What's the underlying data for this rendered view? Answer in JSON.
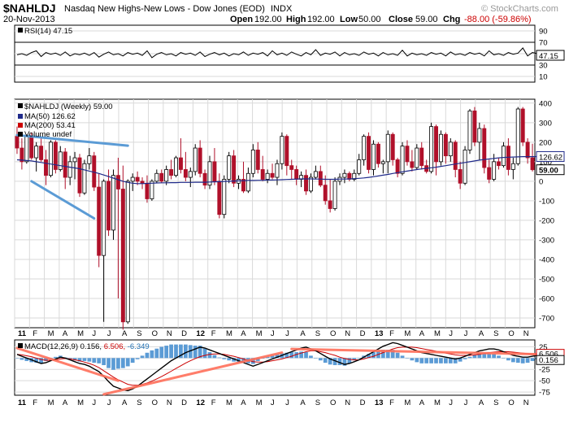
{
  "header": {
    "symbol": "$NAHLDJ",
    "description": "Nasdaq New Highs-New Lows - Dow Jones (EOD)",
    "exchange": "INDX",
    "watermark": "© StockCharts.com",
    "date": "20-Nov-2013",
    "open_label": "Open",
    "open": "192.00",
    "high_label": "High",
    "high": "192.00",
    "low_label": "Low",
    "low": "50.00",
    "close_label": "Close",
    "close": "59.00",
    "chg_label": "Chg",
    "chg": "-88.00 (-59.86%)"
  },
  "chart_data": [
    {
      "type": "line",
      "panel": "rsi",
      "legend": "RSI(14) 47.15",
      "current_value": "47.15",
      "ylim": [
        0,
        100
      ],
      "ticks": [
        "90",
        "70",
        "50",
        "30",
        "10"
      ],
      "reference_lines": [
        70,
        30
      ],
      "values": [
        48,
        50,
        47,
        52,
        55,
        45,
        52,
        49,
        51,
        47,
        53,
        46,
        50,
        48,
        51,
        47,
        52,
        44,
        49,
        53,
        48,
        50,
        46,
        52,
        49,
        51,
        47,
        55,
        43,
        49,
        52,
        48,
        50,
        46,
        52,
        49,
        51,
        47,
        53,
        45,
        49,
        52,
        48,
        51,
        46,
        50,
        48,
        53,
        47,
        51,
        49,
        52,
        46,
        55,
        48,
        51,
        47,
        53,
        49,
        46,
        52,
        48,
        57,
        47,
        51,
        49,
        53,
        46,
        52,
        48,
        50,
        47,
        53,
        49,
        51,
        46,
        52,
        48,
        50,
        47,
        56,
        46,
        51,
        48,
        50,
        47,
        52,
        49,
        51,
        46,
        53,
        48,
        50,
        47,
        52,
        49,
        51,
        46,
        55,
        48,
        50,
        47,
        52,
        49,
        51,
        60,
        46,
        52,
        50,
        47
      ]
    },
    {
      "type": "candlestick",
      "panel": "price",
      "title": "$NAHLDJ (Weekly) 59.00",
      "ylim": [
        -750,
        420
      ],
      "ticks": [
        "400",
        "300",
        "200",
        "100",
        "0",
        "-100",
        "-200",
        "-300",
        "-400",
        "-500",
        "-600",
        "-700"
      ],
      "price_labels": [
        "126.62",
        "59.00"
      ],
      "legend": [
        {
          "name": "MA(50) 126.62",
          "color": "#1f2a8a"
        },
        {
          "name": "MA(200) 53.41",
          "color": "#cc0000"
        },
        {
          "name": "Volume undef",
          "color": "#000000"
        }
      ],
      "x_labels": [
        "11",
        "F",
        "M",
        "A",
        "M",
        "J",
        "J",
        "A",
        "S",
        "O",
        "N",
        "D",
        "12",
        "F",
        "M",
        "A",
        "M",
        "J",
        "J",
        "A",
        "S",
        "O",
        "N",
        "D",
        "13",
        "F",
        "M",
        "A",
        "M",
        "J",
        "J",
        "A",
        "S",
        "O",
        "N"
      ],
      "candles": [
        {
          "o": 230,
          "h": 280,
          "l": 140,
          "c": 170
        },
        {
          "o": 170,
          "h": 220,
          "l": 60,
          "c": 100
        },
        {
          "o": 100,
          "h": 240,
          "l": 90,
          "c": 230
        },
        {
          "o": 230,
          "h": 250,
          "l": 110,
          "c": 120
        },
        {
          "o": 120,
          "h": 200,
          "l": 50,
          "c": 180
        },
        {
          "o": 180,
          "h": 230,
          "l": 100,
          "c": 110
        },
        {
          "o": 110,
          "h": 160,
          "l": -20,
          "c": 30
        },
        {
          "o": 30,
          "h": 210,
          "l": 20,
          "c": 200
        },
        {
          "o": 200,
          "h": 210,
          "l": 40,
          "c": 60
        },
        {
          "o": 60,
          "h": 180,
          "l": 50,
          "c": 150
        },
        {
          "o": 150,
          "h": 170,
          "l": -40,
          "c": 20
        },
        {
          "o": 20,
          "h": 130,
          "l": -20,
          "c": 100
        },
        {
          "o": 100,
          "h": 150,
          "l": 10,
          "c": 120
        },
        {
          "o": 120,
          "h": 140,
          "l": -80,
          "c": -60
        },
        {
          "o": -60,
          "h": 110,
          "l": -70,
          "c": 90
        },
        {
          "o": 90,
          "h": 170,
          "l": 60,
          "c": 130
        },
        {
          "o": 130,
          "h": 150,
          "l": -50,
          "c": -30
        },
        {
          "o": -30,
          "h": 40,
          "l": -440,
          "c": -380
        },
        {
          "o": -380,
          "h": 10,
          "l": -720,
          "c": 0
        },
        {
          "o": 0,
          "h": 60,
          "l": -280,
          "c": -250
        },
        {
          "o": -250,
          "h": 60,
          "l": -300,
          "c": 30
        },
        {
          "o": 30,
          "h": 120,
          "l": -600,
          "c": -40
        },
        {
          "o": -40,
          "h": 80,
          "l": -760,
          "c": -720
        },
        {
          "o": -720,
          "h": 10,
          "l": -730,
          "c": 0
        },
        {
          "o": 0,
          "h": 40,
          "l": -50,
          "c": 20
        },
        {
          "o": 20,
          "h": 50,
          "l": -20,
          "c": 0
        },
        {
          "o": 0,
          "h": 20,
          "l": -40,
          "c": -10
        },
        {
          "o": -10,
          "h": 30,
          "l": -110,
          "c": -90
        },
        {
          "o": -90,
          "h": 10,
          "l": -100,
          "c": 0
        },
        {
          "o": 0,
          "h": 60,
          "l": -10,
          "c": 40
        },
        {
          "o": 40,
          "h": 60,
          "l": -10,
          "c": 0
        },
        {
          "o": 0,
          "h": 80,
          "l": -20,
          "c": 60
        },
        {
          "o": 60,
          "h": 110,
          "l": 10,
          "c": 30
        },
        {
          "o": 30,
          "h": 130,
          "l": 20,
          "c": 120
        },
        {
          "o": 120,
          "h": 220,
          "l": 40,
          "c": 60
        },
        {
          "o": 60,
          "h": 150,
          "l": 0,
          "c": 20
        },
        {
          "o": 20,
          "h": 70,
          "l": -30,
          "c": 50
        },
        {
          "o": 50,
          "h": 190,
          "l": 30,
          "c": 170
        },
        {
          "o": 170,
          "h": 210,
          "l": 20,
          "c": 40
        },
        {
          "o": 40,
          "h": 60,
          "l": -40,
          "c": -20
        },
        {
          "o": -20,
          "h": 130,
          "l": -40,
          "c": 100
        },
        {
          "o": 100,
          "h": 170,
          "l": -20,
          "c": 0
        },
        {
          "o": 0,
          "h": 40,
          "l": -190,
          "c": -170
        },
        {
          "o": -170,
          "h": 30,
          "l": -190,
          "c": 10
        },
        {
          "o": 10,
          "h": 150,
          "l": -10,
          "c": 130
        },
        {
          "o": 130,
          "h": 160,
          "l": -30,
          "c": -10
        },
        {
          "o": -10,
          "h": 30,
          "l": -40,
          "c": 10
        },
        {
          "o": 10,
          "h": 100,
          "l": -60,
          "c": -50
        },
        {
          "o": -50,
          "h": 70,
          "l": -60,
          "c": 40
        },
        {
          "o": 40,
          "h": 190,
          "l": 20,
          "c": 160
        },
        {
          "o": 160,
          "h": 200,
          "l": 40,
          "c": 60
        },
        {
          "o": 60,
          "h": 130,
          "l": 0,
          "c": 10
        },
        {
          "o": 10,
          "h": 60,
          "l": -10,
          "c": 40
        },
        {
          "o": 40,
          "h": 90,
          "l": 10,
          "c": 20
        },
        {
          "o": 20,
          "h": 110,
          "l": -20,
          "c": 90
        },
        {
          "o": 90,
          "h": 250,
          "l": 60,
          "c": 230
        },
        {
          "o": 230,
          "h": 240,
          "l": 30,
          "c": 80
        },
        {
          "o": 80,
          "h": 110,
          "l": 10,
          "c": 60
        },
        {
          "o": 60,
          "h": 80,
          "l": -20,
          "c": 10
        },
        {
          "o": 10,
          "h": 50,
          "l": -30,
          "c": 30
        },
        {
          "o": 30,
          "h": 60,
          "l": -70,
          "c": -50
        },
        {
          "o": -50,
          "h": 40,
          "l": -60,
          "c": 20
        },
        {
          "o": 20,
          "h": 80,
          "l": 10,
          "c": 50
        },
        {
          "o": 50,
          "h": 80,
          "l": -30,
          "c": -20
        },
        {
          "o": -20,
          "h": 30,
          "l": -120,
          "c": -100
        },
        {
          "o": -100,
          "h": 10,
          "l": -160,
          "c": -140
        },
        {
          "o": -140,
          "h": 20,
          "l": -150,
          "c": 0
        },
        {
          "o": 0,
          "h": 40,
          "l": -20,
          "c": 20
        },
        {
          "o": 20,
          "h": 60,
          "l": -10,
          "c": 40
        },
        {
          "o": 40,
          "h": 50,
          "l": 0,
          "c": 10
        },
        {
          "o": 10,
          "h": 60,
          "l": 0,
          "c": 40
        },
        {
          "o": 40,
          "h": 140,
          "l": 30,
          "c": 110
        },
        {
          "o": 110,
          "h": 240,
          "l": 80,
          "c": 230
        },
        {
          "o": 230,
          "h": 250,
          "l": 40,
          "c": 60
        },
        {
          "o": 60,
          "h": 210,
          "l": 30,
          "c": 190
        },
        {
          "o": 190,
          "h": 200,
          "l": 70,
          "c": 90
        },
        {
          "o": 90,
          "h": 110,
          "l": 40,
          "c": 100
        },
        {
          "o": 100,
          "h": 260,
          "l": 40,
          "c": 240
        },
        {
          "o": 240,
          "h": 250,
          "l": 80,
          "c": 110
        },
        {
          "o": 110,
          "h": 120,
          "l": 20,
          "c": 40
        },
        {
          "o": 40,
          "h": 200,
          "l": 30,
          "c": 180
        },
        {
          "o": 180,
          "h": 210,
          "l": 80,
          "c": 100
        },
        {
          "o": 100,
          "h": 160,
          "l": 50,
          "c": 70
        },
        {
          "o": 70,
          "h": 190,
          "l": 60,
          "c": 170
        },
        {
          "o": 170,
          "h": 200,
          "l": 60,
          "c": 80
        },
        {
          "o": 80,
          "h": 110,
          "l": 40,
          "c": 50
        },
        {
          "o": 50,
          "h": 300,
          "l": 40,
          "c": 280
        },
        {
          "o": 280,
          "h": 290,
          "l": 30,
          "c": 100
        },
        {
          "o": 100,
          "h": 260,
          "l": 80,
          "c": 240
        },
        {
          "o": 240,
          "h": 250,
          "l": 90,
          "c": 130
        },
        {
          "o": 130,
          "h": 220,
          "l": 100,
          "c": 200
        },
        {
          "o": 200,
          "h": 210,
          "l": 20,
          "c": 60
        },
        {
          "o": 60,
          "h": 100,
          "l": -40,
          "c": -10
        },
        {
          "o": -10,
          "h": 180,
          "l": -20,
          "c": 160
        },
        {
          "o": 160,
          "h": 370,
          "l": 140,
          "c": 360
        },
        {
          "o": 360,
          "h": 380,
          "l": 180,
          "c": 200
        },
        {
          "o": 200,
          "h": 300,
          "l": 110,
          "c": 270
        },
        {
          "o": 270,
          "h": 290,
          "l": 40,
          "c": 70
        },
        {
          "o": 70,
          "h": 110,
          "l": -10,
          "c": 10
        },
        {
          "o": 10,
          "h": 140,
          "l": 0,
          "c": 100
        },
        {
          "o": 100,
          "h": 120,
          "l": 60,
          "c": 80
        },
        {
          "o": 80,
          "h": 200,
          "l": 70,
          "c": 180
        },
        {
          "o": 180,
          "h": 220,
          "l": 30,
          "c": 60
        },
        {
          "o": 60,
          "h": 120,
          "l": 10,
          "c": 90
        },
        {
          "o": 90,
          "h": 380,
          "l": 80,
          "c": 370
        },
        {
          "o": 370,
          "h": 380,
          "l": 180,
          "c": 200
        },
        {
          "o": 200,
          "h": 220,
          "l": 90,
          "c": 120
        },
        {
          "o": 120,
          "h": 192,
          "l": 50,
          "c": 59
        }
      ],
      "ma50": [
        110,
        108,
        106,
        104,
        100,
        96,
        92,
        88,
        84,
        80,
        76,
        72,
        68,
        64,
        58,
        52,
        46,
        40,
        32,
        24,
        16,
        8,
        0,
        -6,
        -10,
        -12,
        -12,
        -11,
        -10,
        -9,
        -8,
        -8,
        -7,
        -7,
        -6,
        -6,
        -6,
        -5,
        -5,
        -5,
        -4,
        -3,
        -2,
        -1,
        0,
        1,
        2,
        3,
        4,
        4,
        5,
        5,
        6,
        6,
        7,
        8,
        9,
        10,
        11,
        12,
        12,
        12,
        11,
        11,
        10,
        10,
        10,
        11,
        11,
        12,
        13,
        15,
        17,
        20,
        23,
        27,
        31,
        35,
        40,
        44,
        48,
        52,
        56,
        60,
        63,
        66,
        69,
        72,
        76,
        80,
        84,
        88,
        92,
        96,
        100,
        104,
        108,
        111,
        114,
        117,
        120,
        122,
        123,
        124,
        125,
        126,
        126,
        126,
        126.62,
        126.62
      ],
      "trendlines": [
        {
          "from": [
            0,
            236
          ],
          "to": [
            23,
            182
          ],
          "color": "#5b9bd5"
        },
        {
          "from": [
            3,
            0
          ],
          "to": [
            16,
            -190
          ],
          "color": "#5b9bd5"
        }
      ]
    },
    {
      "type": "area",
      "panel": "macd",
      "legend_name": "MACD(12,26,9)",
      "legend_values": [
        "0.156",
        "6.506",
        "-6.349"
      ],
      "legend_colors": [
        "#000000",
        "#cc0000",
        "#1f6fb2"
      ],
      "ylim": [
        -82,
        40
      ],
      "ticks": [
        "25",
        "0",
        "-25",
        "-50",
        "-75"
      ],
      "current_labels": [
        "6.506",
        "0.156"
      ],
      "macd": [
        8,
        4,
        0,
        -4,
        -8,
        -12,
        -10,
        -6,
        -2,
        2,
        0,
        -4,
        -8,
        -12,
        -14,
        -18,
        -24,
        -30,
        -40,
        -52,
        -62,
        -66,
        -70,
        -72,
        -68,
        -62,
        -54,
        -46,
        -38,
        -30,
        -22,
        -14,
        -6,
        0,
        6,
        12,
        16,
        20,
        24,
        22,
        18,
        14,
        10,
        6,
        2,
        -2,
        -6,
        -10,
        -14,
        -18,
        -14,
        -10,
        -6,
        -2,
        2,
        6,
        10,
        14,
        18,
        22,
        24,
        20,
        16,
        10,
        4,
        -2,
        -6,
        -10,
        -14,
        -12,
        -8,
        -4,
        2,
        8,
        14,
        20,
        26,
        30,
        34,
        32,
        28,
        24,
        20,
        16,
        12,
        10,
        8,
        6,
        4,
        2,
        0,
        -2,
        0,
        4,
        8,
        12,
        16,
        18,
        20,
        20,
        18,
        14,
        10,
        6,
        4,
        2,
        2,
        4,
        6,
        0.156
      ],
      "signal": [
        8,
        7,
        5,
        3,
        0,
        -3,
        -5,
        -5,
        -4,
        -2,
        -1,
        -2,
        -4,
        -6,
        -9,
        -12,
        -16,
        -21,
        -28,
        -35,
        -42,
        -48,
        -53,
        -58,
        -60,
        -60,
        -58,
        -55,
        -51,
        -46,
        -41,
        -35,
        -29,
        -23,
        -17,
        -11,
        -6,
        -1,
        3,
        6,
        8,
        9,
        9,
        8,
        6,
        4,
        1,
        -2,
        -5,
        -8,
        -9,
        -9,
        -8,
        -6,
        -4,
        -2,
        1,
        4,
        8,
        11,
        14,
        16,
        16,
        14,
        12,
        9,
        6,
        2,
        -1,
        -3,
        -4,
        -4,
        -2,
        1,
        4,
        8,
        12,
        16,
        20,
        23,
        24,
        24,
        24,
        23,
        21,
        19,
        17,
        15,
        13,
        11,
        9,
        7,
        6,
        6,
        6,
        7,
        8,
        10,
        12,
        13,
        14,
        14,
        14,
        13,
        12,
        11,
        10,
        9,
        8,
        6.506
      ]
    }
  ]
}
